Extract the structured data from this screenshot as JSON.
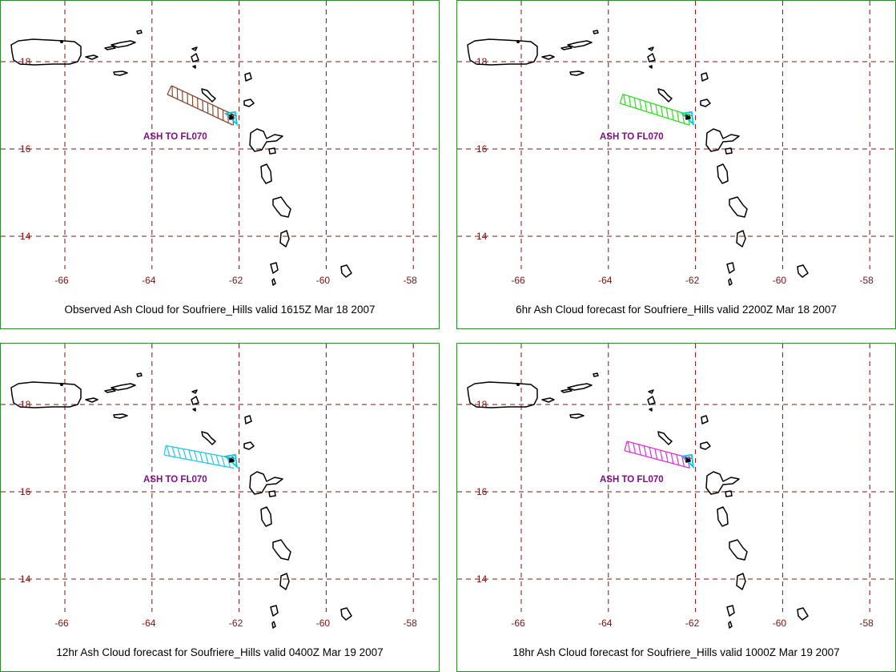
{
  "colors": {
    "panel_border": "#2e8b2e",
    "grid": "#7a1010",
    "volcano_marker": "#00c8e0",
    "ash_label": "#7b1080"
  },
  "grid": {
    "longitudes": [
      -66,
      -64,
      -62,
      -60,
      -58
    ],
    "latitudes": [
      18,
      16,
      14
    ],
    "lon_labels": [
      "-66",
      "-64",
      "-62",
      "-60",
      "-58"
    ],
    "lat_labels": [
      "18",
      "16",
      "14"
    ]
  },
  "panels": [
    {
      "caption": "Observed Ash Cloud for Soufriere_Hills valid 1615Z Mar 18 2007",
      "ash_label": "ASH TO FL070",
      "cloud_color": "#8b4a2b",
      "cloud_start": {
        "lon": -63.6,
        "lat": 17.35
      },
      "cloud_end": {
        "lon": -62.1,
        "lat": 16.65
      }
    },
    {
      "caption": "6hr Ash Cloud forecast for Soufriere_Hills valid 2200Z Mar 18 2007",
      "ash_label": "ASH TO FL070",
      "cloud_color": "#33dd22",
      "cloud_start": {
        "lon": -63.7,
        "lat": 17.15
      },
      "cloud_end": {
        "lon": -62.1,
        "lat": 16.65
      }
    },
    {
      "caption": "12hr Ash Cloud forecast for Soufriere_Hills valid 0400Z Mar 19 2007",
      "ash_label": "ASH TO FL070",
      "cloud_color": "#22c8e8",
      "cloud_start": {
        "lon": -63.7,
        "lat": 16.95
      },
      "cloud_end": {
        "lon": -62.1,
        "lat": 16.65
      }
    },
    {
      "caption": "18hr Ash Cloud forecast for Soufriere_Hills valid 1000Z Mar 19 2007",
      "ash_label": "ASH TO FL070",
      "cloud_color": "#dd33dd",
      "cloud_start": {
        "lon": -63.6,
        "lat": 17.05
      },
      "cloud_end": {
        "lon": -62.1,
        "lat": 16.65
      }
    }
  ],
  "volcano": {
    "lon": -62.18,
    "lat": 16.72
  }
}
